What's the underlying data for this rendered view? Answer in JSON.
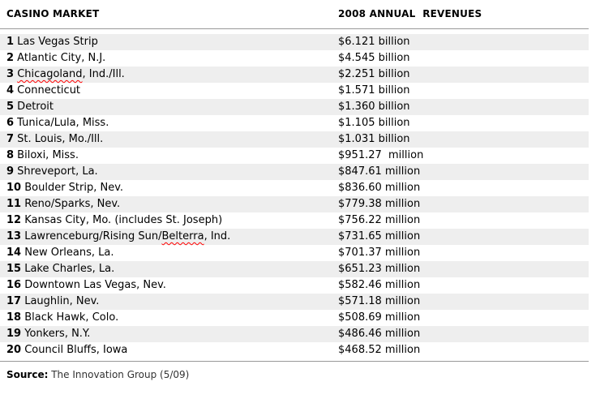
{
  "table": {
    "columns": {
      "market": "CASINO MARKET",
      "revenue": "2008 ANNUAL  REVENUES"
    },
    "rows": [
      {
        "rank": "1",
        "name": "Las Vegas Strip",
        "revenue": "$6.121 billion"
      },
      {
        "rank": "2",
        "name": "Atlantic City, N.J.",
        "revenue": "$4.545 billion"
      },
      {
        "rank": "3",
        "name": "Chicagoland, Ind./Ill.",
        "revenue": "$2.251 billion",
        "misspelled_word": "Chicagoland"
      },
      {
        "rank": "4",
        "name": "Connecticut",
        "revenue": "$1.571 billion"
      },
      {
        "rank": "5",
        "name": "Detroit",
        "revenue": "$1.360 billion"
      },
      {
        "rank": "6",
        "name": "Tunica/Lula, Miss.",
        "revenue": "$1.105 billion"
      },
      {
        "rank": "7",
        "name": "St. Louis, Mo./Ill.",
        "revenue": "$1.031 billion"
      },
      {
        "rank": "8",
        "name": "Biloxi, Miss.",
        "revenue": "$951.27  million"
      },
      {
        "rank": "9",
        "name": "Shreveport, La.",
        "revenue": "$847.61 million"
      },
      {
        "rank": "10",
        "name": "Boulder Strip, Nev.",
        "revenue": "$836.60 million"
      },
      {
        "rank": "11",
        "name": "Reno/Sparks, Nev.",
        "revenue": "$779.38 million"
      },
      {
        "rank": "12",
        "name": "Kansas City, Mo. (includes St. Joseph)",
        "revenue": "$756.22 million"
      },
      {
        "rank": "13",
        "name": "Lawrenceburg/Rising Sun/Belterra, Ind.",
        "revenue": "$731.65 million",
        "misspelled_word": "Belterra"
      },
      {
        "rank": "14",
        "name": "New Orleans, La.",
        "revenue": "$701.37 million"
      },
      {
        "rank": "15",
        "name": "Lake Charles, La.",
        "revenue": "$651.23 million"
      },
      {
        "rank": "16",
        "name": "Downtown Las Vegas, Nev.",
        "revenue": "$582.46 million"
      },
      {
        "rank": "17",
        "name": "Laughlin, Nev.",
        "revenue": "$571.18 million"
      },
      {
        "rank": "18",
        "name": "Black Hawk, Colo.",
        "revenue": "$508.69 million"
      },
      {
        "rank": "19",
        "name": "Yonkers, N.Y.",
        "revenue": "$486.46 million"
      },
      {
        "rank": "20",
        "name": "Council Bluffs, Iowa",
        "revenue": "$468.52 million"
      }
    ]
  },
  "footer": {
    "source_label": "Source:",
    "source_text": " The Innovation Group (5/09)"
  },
  "colors": {
    "row_stripe": "#eeeeee",
    "divider_line": "#999999",
    "spellcheck_underline": "#ff0000",
    "text": "#000000"
  }
}
